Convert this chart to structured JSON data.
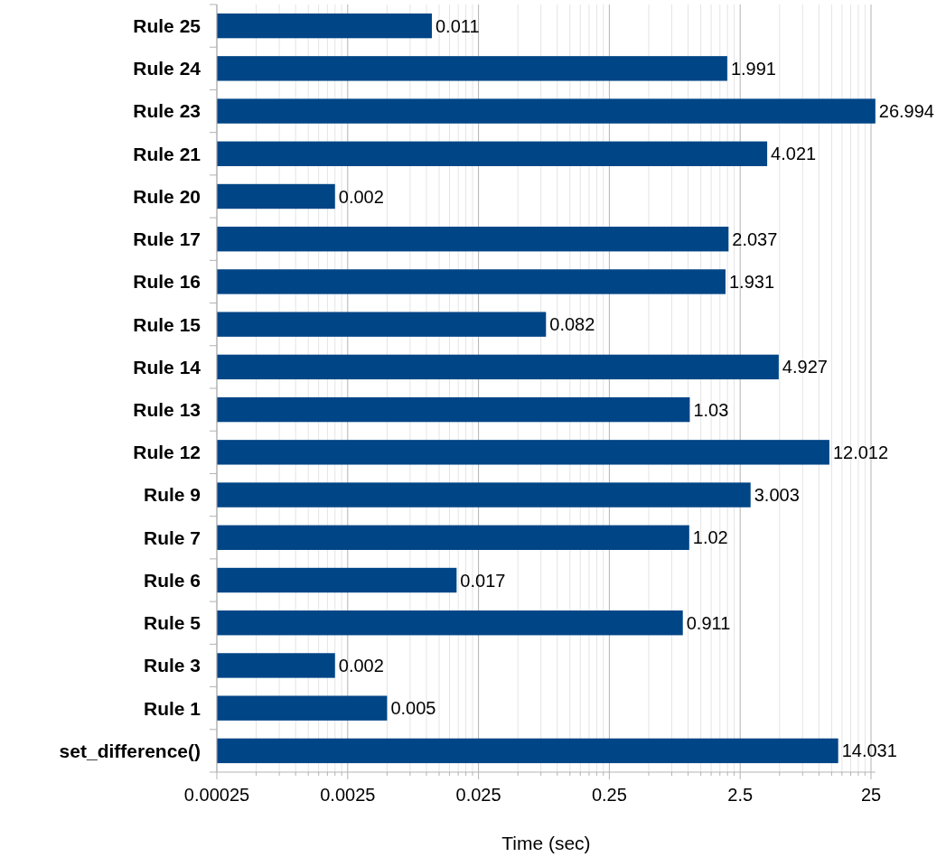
{
  "chart_data": {
    "type": "bar",
    "orientation": "horizontal",
    "log": "x",
    "xlabel": "Time (sec)",
    "categories": [
      "Rule 25",
      "Rule 24",
      "Rule 23",
      "Rule 21",
      "Rule 20",
      "Rule 17",
      "Rule 16",
      "Rule 15",
      "Rule 14",
      "Rule 13",
      "Rule 12",
      "Rule 9",
      "Rule 7",
      "Rule 6",
      "Rule 5",
      "Rule 3",
      "Rule 1",
      "set_difference()"
    ],
    "values": [
      0.011,
      1.991,
      26.994,
      4.021,
      0.002,
      2.037,
      1.931,
      0.082,
      4.927,
      1.03,
      12.012,
      3.003,
      1.02,
      0.017,
      0.911,
      0.002,
      0.005,
      14.031
    ],
    "color": "#004586",
    "xlim": [
      0.00025,
      27
    ],
    "xticks": [
      0.00025,
      0.0025,
      0.025,
      0.25,
      2.5,
      25
    ],
    "grid": "x",
    "data_labels": true
  }
}
